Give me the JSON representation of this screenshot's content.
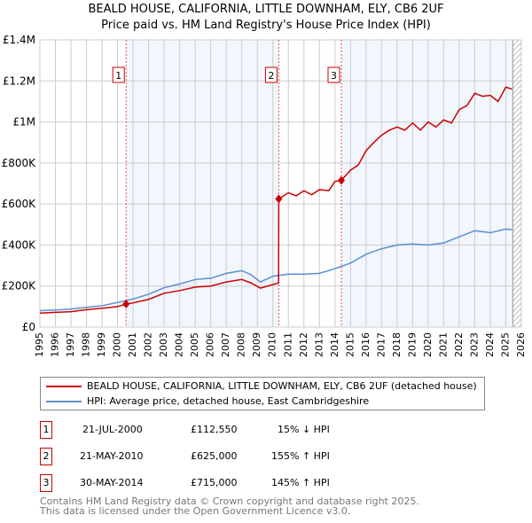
{
  "chart_data": {
    "type": "line",
    "title": "BEALD HOUSE, CALIFORNIA, LITTLE DOWNHAM, ELY, CB6 2UF",
    "subtitle": "Price paid vs. HM Land Registry's House Price Index (HPI)",
    "xlim": [
      1995,
      2026
    ],
    "ylim": [
      0,
      1400000
    ],
    "x_ticks": [
      "1995",
      "1996",
      "1997",
      "1998",
      "1999",
      "2000",
      "2001",
      "2002",
      "2003",
      "2004",
      "2005",
      "2006",
      "2007",
      "2008",
      "2009",
      "2010",
      "2011",
      "2012",
      "2013",
      "2014",
      "2015",
      "2016",
      "2017",
      "2018",
      "2019",
      "2020",
      "2021",
      "2022",
      "2023",
      "2024",
      "2025",
      "2026"
    ],
    "y_ticks": [
      {
        "v": 0,
        "l": "£0"
      },
      {
        "v": 200000,
        "l": "£200K"
      },
      {
        "v": 400000,
        "l": "£400K"
      },
      {
        "v": 600000,
        "l": "£600K"
      },
      {
        "v": 800000,
        "l": "£800K"
      },
      {
        "v": 1000000,
        "l": "£1M"
      },
      {
        "v": 1200000,
        "l": "£1.2M"
      },
      {
        "v": 1400000,
        "l": "£1.4M"
      }
    ],
    "grid": true,
    "series": [
      {
        "name": "BEALD HOUSE, CALIFORNIA, LITTLE DOWNHAM, ELY, CB6 2UF (detached house)",
        "color": "#cc0000",
        "x": [
          1995,
          1996,
          1997,
          1998,
          1999,
          2000,
          2000.55,
          2001,
          2002,
          2003,
          2004,
          2005,
          2006,
          2007,
          2008,
          2008.6,
          2009.2,
          2010.37,
          2010.38,
          2011,
          2011.5,
          2012,
          2012.5,
          2013,
          2013.6,
          2014,
          2014.41,
          2015,
          2015.5,
          2016,
          2016.5,
          2017,
          2017.5,
          2018,
          2018.5,
          2019,
          2019.5,
          2020,
          2020.5,
          2021,
          2021.5,
          2022,
          2022.5,
          2023,
          2023.5,
          2024,
          2024.5,
          2025,
          2025.4
        ],
        "y": [
          68000,
          72000,
          75000,
          85000,
          92000,
          100000,
          112550,
          118000,
          135000,
          165000,
          178000,
          195000,
          200000,
          220000,
          232000,
          215000,
          190000,
          215000,
          625000,
          655000,
          640000,
          665000,
          645000,
          670000,
          665000,
          710000,
          715000,
          765000,
          790000,
          860000,
          900000,
          935000,
          960000,
          975000,
          960000,
          995000,
          960000,
          1000000,
          975000,
          1010000,
          995000,
          1060000,
          1080000,
          1140000,
          1125000,
          1130000,
          1100000,
          1170000,
          1160000
        ]
      },
      {
        "name": "HPI: Average price, detached house, East Cambridgeshire",
        "color": "#5b8fd0",
        "x": [
          1995,
          1996,
          1997,
          1998,
          1999,
          2000,
          2001,
          2002,
          2003,
          2004,
          2005,
          2006,
          2007,
          2008,
          2008.6,
          2009.2,
          2010,
          2011,
          2012,
          2013,
          2014,
          2015,
          2016,
          2017,
          2018,
          2019,
          2020,
          2021,
          2022,
          2023,
          2024,
          2025,
          2025.4
        ],
        "y": [
          80000,
          83000,
          88000,
          96000,
          104000,
          120000,
          137000,
          160000,
          192000,
          210000,
          232000,
          238000,
          262000,
          275000,
          255000,
          220000,
          248000,
          258000,
          258000,
          262000,
          285000,
          312000,
          355000,
          382000,
          400000,
          405000,
          400000,
          410000,
          440000,
          470000,
          460000,
          478000,
          475000
        ]
      }
    ],
    "sales": [
      {
        "id": "1",
        "x": 2000.55,
        "date": "21-JUL-2000",
        "price": "£112,550",
        "value": 112550,
        "hpi": "15% ↓ HPI"
      },
      {
        "id": "2",
        "x": 2010.38,
        "date": "21-MAY-2010",
        "price": "£625,000",
        "value": 625000,
        "hpi": "155% ↑ HPI"
      },
      {
        "id": "3",
        "x": 2014.41,
        "date": "30-MAY-2014",
        "price": "£715,000",
        "value": 715000,
        "hpi": "145% ↑ HPI"
      }
    ],
    "data_end": 2025.45
  },
  "footer": [
    "Contains HM Land Registry data © Crown copyright and database right 2025.",
    "This data is licensed under the Open Government Licence v3.0."
  ]
}
